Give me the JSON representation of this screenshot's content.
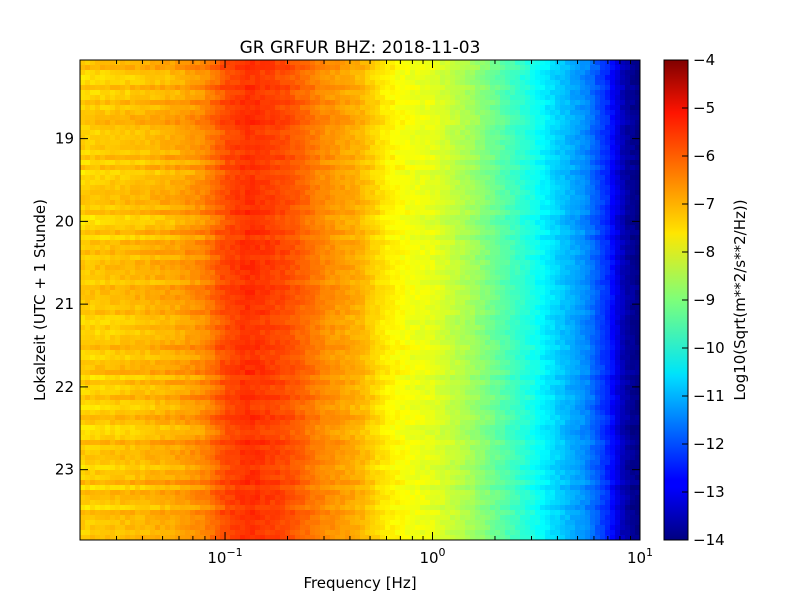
{
  "chart_data": {
    "type": "heatmap",
    "title": "GR GRFUR BHZ: 2018-11-03",
    "xlabel": "Frequency [Hz]",
    "ylabel": "Lokalzeit (UTC + 1 Stunde)",
    "xscale": "log",
    "xlim": [
      0.02,
      10
    ],
    "ylim": [
      18.05,
      23.85
    ],
    "y_inverted": true,
    "x_ticks": [
      {
        "value": 0.1,
        "base": "10",
        "exp": "−1"
      },
      {
        "value": 1,
        "base": "10",
        "exp": "0"
      },
      {
        "value": 10,
        "base": "10",
        "exp": "1"
      }
    ],
    "y_ticks": [
      "19",
      "20",
      "21",
      "22",
      "23"
    ],
    "colormap": "jet",
    "colorbar": {
      "label": "Log10(Sqrt(m**2/s**2/Hz))",
      "range": [
        -14,
        -4
      ],
      "ticks": [
        "−4",
        "−5",
        "−6",
        "−7",
        "−8",
        "−9",
        "−10",
        "−11",
        "−12",
        "−13",
        "−14"
      ]
    },
    "spectrum_profile": {
      "frequency_hz": [
        0.02,
        0.04,
        0.06,
        0.08,
        0.1,
        0.13,
        0.2,
        0.3,
        0.45,
        0.6,
        0.8,
        1.0,
        1.5,
        2.0,
        3.0,
        4.0,
        5.5,
        7.0,
        8.5,
        10.0
      ],
      "log10_amplitude": [
        -7.3,
        -7.1,
        -6.9,
        -6.6,
        -6.0,
        -5.7,
        -6.0,
        -6.6,
        -7.0,
        -7.6,
        -7.9,
        -8.0,
        -8.6,
        -9.2,
        -10.0,
        -10.7,
        -11.4,
        -12.4,
        -13.6,
        -14.0
      ]
    }
  }
}
